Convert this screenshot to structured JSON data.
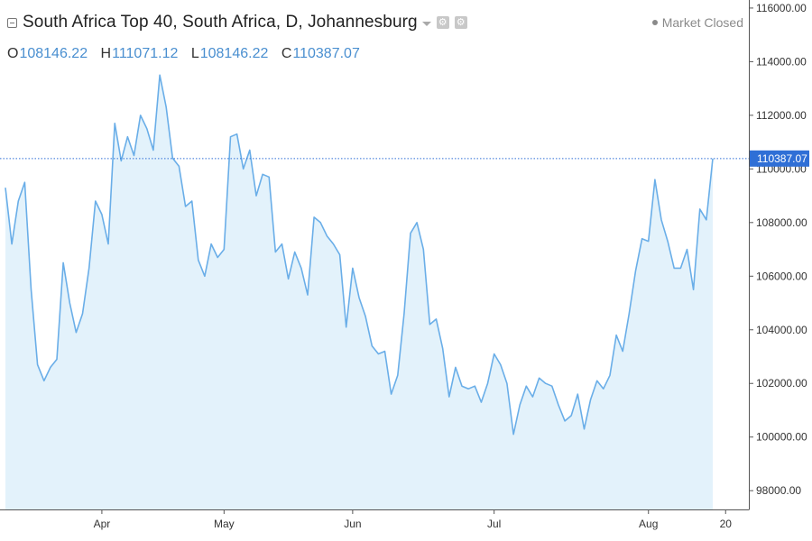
{
  "header": {
    "title": "South Africa Top 40, South Africa, D, Johannesburg",
    "market_status": "Market Closed",
    "ohlc": [
      {
        "key": "O",
        "value": "108146.22"
      },
      {
        "key": "H",
        "value": "111071.12"
      },
      {
        "key": "L",
        "value": "108146.22"
      },
      {
        "key": "C",
        "value": "110387.07"
      }
    ]
  },
  "colors": {
    "line": "#6aaee8",
    "fill": "#e3f2fb",
    "last_price": "#2f6fd6",
    "axis": "#555555"
  },
  "chart_data": {
    "type": "area",
    "title": "South Africa Top 40, South Africa, D, Johannesburg",
    "xlabel": "",
    "ylabel": "",
    "ylim": [
      97300,
      116300
    ],
    "y_ticks": [
      98000,
      100000,
      102000,
      104000,
      106000,
      108000,
      110000,
      112000,
      114000,
      116000
    ],
    "y_tick_labels": [
      "98000.00",
      "100000.00",
      "102000.00",
      "104000.00",
      "106000.00",
      "108000.00",
      "110000.00",
      "112000.00",
      "114000.00",
      "116000.00"
    ],
    "x_ticks": [
      {
        "label": "Apr",
        "index": 15
      },
      {
        "label": "May",
        "index": 34
      },
      {
        "label": "Jun",
        "index": 54
      },
      {
        "label": "Jul",
        "index": 76
      },
      {
        "label": "Aug",
        "index": 100
      },
      {
        "label": "20",
        "index": 112
      }
    ],
    "last_price": 110387.07,
    "last_price_label": "110387.07",
    "grid": false,
    "series": [
      {
        "values": [
          109300,
          107200,
          108800,
          109500,
          105500,
          102700,
          102100,
          102600,
          102900,
          106500,
          105000,
          103900,
          104600,
          106300,
          108800,
          108300,
          107200,
          111700,
          110300,
          111200,
          110500,
          112000,
          111500,
          110700,
          113500,
          112300,
          110400,
          110100,
          108600,
          108800,
          106600,
          106000,
          107200,
          106700,
          107000,
          111200,
          111300,
          110000,
          110700,
          109000,
          109800,
          109700,
          106900,
          107200,
          105900,
          106900,
          106300,
          105300,
          108200,
          108000,
          107500,
          107200,
          106800,
          104100,
          106300,
          105200,
          104500,
          103400,
          103100,
          103200,
          101600,
          102300,
          104600,
          107600,
          108000,
          107000,
          104200,
          104400,
          103300,
          101500,
          102600,
          101900,
          101800,
          101900,
          101300,
          102000,
          103100,
          102700,
          102000,
          100100,
          101200,
          101900,
          101500,
          102200,
          102000,
          101900,
          101200,
          100600,
          100800,
          101600,
          100300,
          101400,
          102100,
          101800,
          102300,
          103800,
          103200,
          104600,
          106200,
          107400,
          107300,
          109600,
          108100,
          107300,
          106300,
          106300,
          107000,
          105500,
          108500,
          108100,
          110387
        ]
      }
    ]
  }
}
